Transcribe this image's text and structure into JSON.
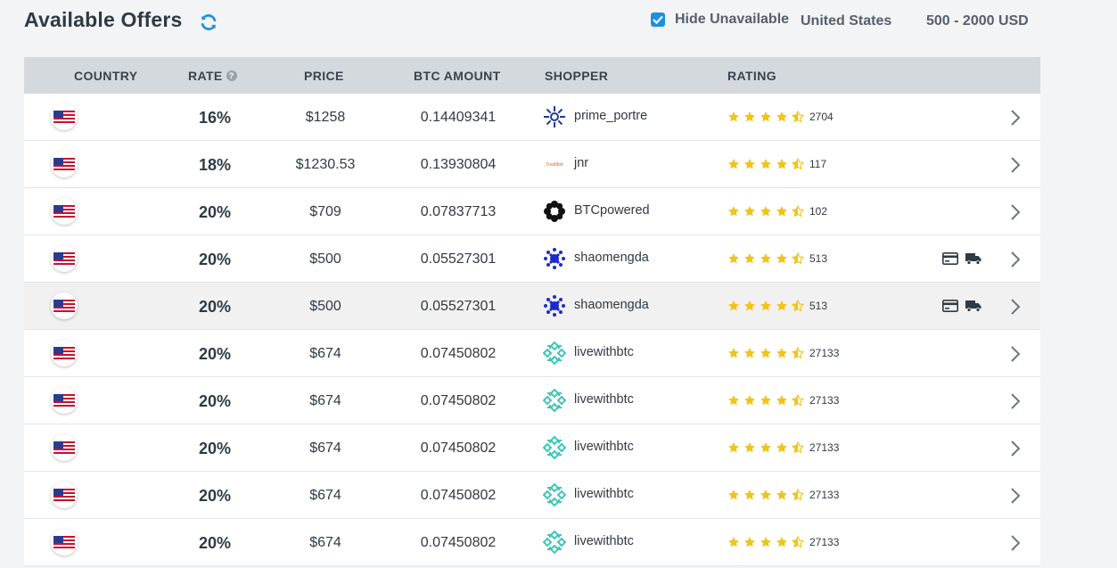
{
  "header": {
    "title": "Available Offers",
    "hide_unavailable_label": "Hide Unavailable",
    "hide_unavailable_checked": true,
    "country": "United States",
    "amount_range": "500 - 2000 USD"
  },
  "table": {
    "columns": {
      "country": "COUNTRY",
      "rate": "RATE",
      "price": "PRICE",
      "btc": "BTC AMOUNT",
      "shopper": "SHOPPER",
      "rating": "RATING"
    },
    "rows": [
      {
        "rate": "16%",
        "price": "$1258",
        "btc": "0.14409341",
        "shopper": "prime_portre",
        "rating_count": "2704",
        "avatar": "prime",
        "pay_icons": false
      },
      {
        "rate": "18%",
        "price": "$1230.53",
        "btc": "0.13930804",
        "shopper": "jnr",
        "rating_count": "117",
        "avatar": "jnr",
        "pay_icons": false
      },
      {
        "rate": "20%",
        "price": "$709",
        "btc": "0.07837713",
        "shopper": "BTCpowered",
        "rating_count": "102",
        "avatar": "btcp",
        "pay_icons": false
      },
      {
        "rate": "20%",
        "price": "$500",
        "btc": "0.05527301",
        "shopper": "shaomengda",
        "rating_count": "513",
        "avatar": "shao",
        "pay_icons": true
      },
      {
        "rate": "20%",
        "price": "$500",
        "btc": "0.05527301",
        "shopper": "shaomengda",
        "rating_count": "513",
        "avatar": "shao",
        "pay_icons": true,
        "highlighted": true
      },
      {
        "rate": "20%",
        "price": "$674",
        "btc": "0.07450802",
        "shopper": "livewithbtc",
        "rating_count": "27133",
        "avatar": "live",
        "pay_icons": false
      },
      {
        "rate": "20%",
        "price": "$674",
        "btc": "0.07450802",
        "shopper": "livewithbtc",
        "rating_count": "27133",
        "avatar": "live",
        "pay_icons": false
      },
      {
        "rate": "20%",
        "price": "$674",
        "btc": "0.07450802",
        "shopper": "livewithbtc",
        "rating_count": "27133",
        "avatar": "live",
        "pay_icons": false
      },
      {
        "rate": "20%",
        "price": "$674",
        "btc": "0.07450802",
        "shopper": "livewithbtc",
        "rating_count": "27133",
        "avatar": "live",
        "pay_icons": false
      },
      {
        "rate": "20%",
        "price": "$674",
        "btc": "0.07450802",
        "shopper": "livewithbtc",
        "rating_count": "27133",
        "avatar": "live",
        "pay_icons": false
      }
    ]
  },
  "colors": {
    "accent": "#1f8fe0",
    "star": "#f0c419",
    "header_bg": "#d4d9dd"
  },
  "icons": {
    "refresh": "refresh-icon",
    "help": "help-icon",
    "star": "star-icon",
    "card": "credit-card-icon",
    "truck": "truck-icon",
    "chevron": "chevron-right-icon",
    "flag": "us-flag-icon"
  }
}
